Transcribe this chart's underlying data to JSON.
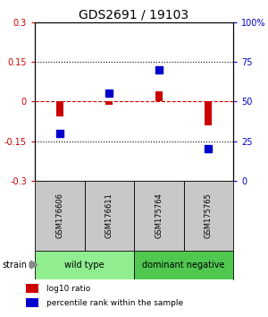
{
  "title": "GDS2691 / 19103",
  "samples": [
    "GSM176606",
    "GSM176611",
    "GSM175764",
    "GSM175765"
  ],
  "log10_ratio": [
    -0.055,
    -0.012,
    0.038,
    -0.09
  ],
  "percentile_rank": [
    30,
    55,
    70,
    20
  ],
  "groups": [
    {
      "label": "wild type",
      "color": "#90EE90",
      "start": 0,
      "end": 1
    },
    {
      "label": "dominant negative",
      "color": "#50C850",
      "start": 2,
      "end": 3
    }
  ],
  "ylim_left": [
    -0.3,
    0.3
  ],
  "ylim_right": [
    0,
    100
  ],
  "yticks_left": [
    -0.3,
    -0.15,
    0,
    0.15,
    0.3
  ],
  "yticks_right": [
    0,
    25,
    50,
    75,
    100
  ],
  "ytick_labels_left": [
    "-0.3",
    "-0.15",
    "0",
    "0.15",
    "0.3"
  ],
  "ytick_labels_right": [
    "0",
    "25",
    "50",
    "75",
    "100%"
  ],
  "hlines_y": [
    -0.15,
    0.15
  ],
  "zero_line_y": 0,
  "bar_color_red": "#CC0000",
  "dot_color_blue": "#0000CC",
  "strain_label": "strain",
  "legend_red_label": "log10 ratio",
  "legend_blue_label": "percentile rank within the sample",
  "background_color": "#ffffff",
  "sample_box_color": "#c8c8c8",
  "title_fontsize": 10,
  "tick_fontsize": 7,
  "bar_width": 0.15,
  "dot_size": 30
}
